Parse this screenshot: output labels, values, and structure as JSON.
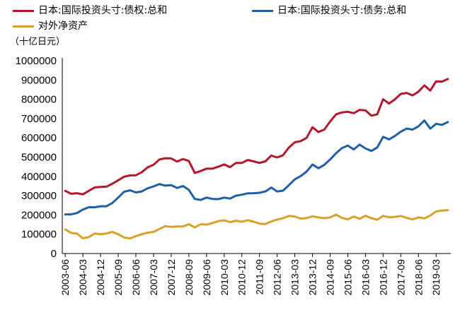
{
  "chart_data": {
    "type": "line",
    "unit_label": "（十亿日元）",
    "legend_placement": "top",
    "ylim": [
      0,
      1000000
    ],
    "y_ticks": [
      0,
      100000,
      200000,
      300000,
      400000,
      500000,
      600000,
      700000,
      800000,
      900000,
      1000000
    ],
    "y_tick_labels": [
      "0",
      "100000",
      "200000",
      "300000",
      "400000",
      "500000",
      "600000",
      "700000",
      "800000",
      "900000",
      "1000000"
    ],
    "x": [
      "2003-06",
      "2003-09",
      "2003-12",
      "2004-03",
      "2004-06",
      "2004-09",
      "2004-12",
      "2005-03",
      "2005-06",
      "2005-09",
      "2005-12",
      "2006-03",
      "2006-06",
      "2006-09",
      "2006-12",
      "2007-03",
      "2007-06",
      "2007-09",
      "2007-12",
      "2008-03",
      "2008-06",
      "2008-09",
      "2008-12",
      "2009-03",
      "2009-06",
      "2009-09",
      "2009-12",
      "2010-03",
      "2010-06",
      "2010-09",
      "2010-12",
      "2011-03",
      "2011-06",
      "2011-09",
      "2011-12",
      "2012-03",
      "2012-06",
      "2012-09",
      "2012-12",
      "2013-03",
      "2013-06",
      "2013-09",
      "2013-12",
      "2014-03",
      "2014-06",
      "2014-09",
      "2014-12",
      "2015-03",
      "2015-06",
      "2015-09",
      "2015-12",
      "2016-03",
      "2016-06",
      "2016-09",
      "2016-12",
      "2017-03",
      "2017-06",
      "2017-09",
      "2017-12",
      "2018-03",
      "2018-06",
      "2018-09",
      "2018-12",
      "2019-03",
      "2019-06",
      "2019-09"
    ],
    "x_tick_labels": [
      "2003-06",
      "2004-03",
      "2004-12",
      "2005-09",
      "2006-06",
      "2007-03",
      "2007-12",
      "2008-09",
      "2009-06",
      "2010-03",
      "2010-12",
      "2011-09",
      "2012-06",
      "2013-03",
      "2013-12",
      "2014-09",
      "2015-06",
      "2016-03",
      "2016-12",
      "2017-09",
      "2018-06",
      "2019-03"
    ],
    "series": [
      {
        "name": "日本:国际投资头寸:债权:总和",
        "color": "#B2182B",
        "values": [
          325000,
          310000,
          313000,
          307000,
          325000,
          343000,
          345000,
          347000,
          362000,
          380000,
          398000,
          405000,
          406000,
          422000,
          447000,
          460000,
          488000,
          494000,
          493000,
          477000,
          490000,
          480000,
          418000,
          428000,
          440000,
          440000,
          450000,
          462000,
          448000,
          470000,
          470000,
          485000,
          478000,
          470000,
          478000,
          508000,
          498000,
          510000,
          550000,
          577000,
          583000,
          600000,
          655000,
          630000,
          643000,
          685000,
          722000,
          732000,
          735000,
          728000,
          745000,
          742000,
          715000,
          722000,
          800000,
          778000,
          800000,
          828000,
          833000,
          820000,
          840000,
          872000,
          845000,
          893000,
          892000,
          905000
        ]
      },
      {
        "name": "日本:国际投资头寸:债务:总和",
        "color": "#1F5FA6",
        "values": [
          203000,
          203000,
          210000,
          228000,
          240000,
          240000,
          245000,
          245000,
          262000,
          290000,
          320000,
          328000,
          317000,
          322000,
          338000,
          348000,
          360000,
          352000,
          355000,
          340000,
          350000,
          330000,
          283000,
          278000,
          290000,
          283000,
          282000,
          290000,
          285000,
          300000,
          305000,
          312000,
          313000,
          315000,
          322000,
          342000,
          322000,
          326000,
          355000,
          385000,
          402000,
          425000,
          462000,
          442000,
          460000,
          488000,
          520000,
          547000,
          560000,
          540000,
          565000,
          545000,
          532000,
          550000,
          605000,
          592000,
          610000,
          632000,
          648000,
          643000,
          660000,
          690000,
          648000,
          673000,
          667000,
          682000
        ]
      },
      {
        "name": "对外净资产",
        "color": "#D4A22B",
        "values": [
          125000,
          107000,
          103000,
          79000,
          85000,
          104000,
          100000,
          104000,
          112000,
          100000,
          83000,
          78000,
          90000,
          100000,
          108000,
          112000,
          127000,
          142000,
          138000,
          140000,
          140000,
          152000,
          135000,
          152000,
          150000,
          158000,
          168000,
          172000,
          163000,
          170000,
          165000,
          173000,
          165000,
          155000,
          153000,
          166000,
          176000,
          183000,
          195000,
          192000,
          181000,
          184000,
          193000,
          187000,
          183000,
          187000,
          202000,
          185000,
          177000,
          192000,
          180000,
          196000,
          183000,
          175000,
          195000,
          188000,
          190000,
          195000,
          185000,
          177000,
          187000,
          182000,
          197000,
          218000,
          223000,
          225000
        ]
      }
    ]
  }
}
